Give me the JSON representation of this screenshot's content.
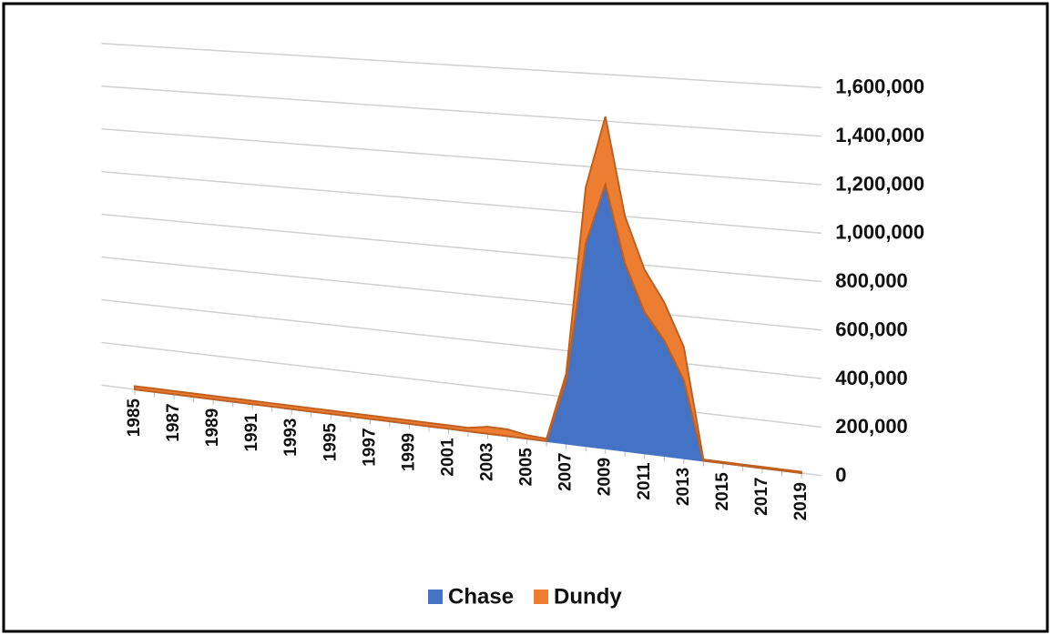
{
  "chart_data": {
    "type": "area",
    "stacked": true,
    "categories": [
      "1985",
      null,
      "1987",
      null,
      "1989",
      null,
      "1991",
      null,
      "1993",
      null,
      "1995",
      null,
      "1997",
      null,
      "1999",
      null,
      "2001",
      null,
      "2003",
      null,
      "2005",
      null,
      "2007",
      null,
      "2009",
      null,
      "2011",
      null,
      "2013",
      null,
      "2015",
      null,
      "2017",
      null,
      "2019"
    ],
    "series": [
      {
        "name": "Chase",
        "color": "#4472c4",
        "values": [
          0,
          0,
          0,
          0,
          0,
          0,
          0,
          0,
          0,
          0,
          0,
          0,
          0,
          0,
          0,
          0,
          0,
          0,
          0,
          0,
          0,
          0,
          270000,
          870000,
          1130000,
          800000,
          600000,
          490000,
          330000,
          0,
          0,
          0,
          0,
          0,
          0
        ]
      },
      {
        "name": "Dundy",
        "color": "#ed7d31",
        "values": [
          15000,
          15000,
          15000,
          15000,
          15000,
          15000,
          15000,
          15000,
          15000,
          15000,
          15000,
          15000,
          15000,
          15000,
          15000,
          15000,
          15000,
          15000,
          30000,
          30000,
          15000,
          10000,
          30000,
          240000,
          290000,
          200000,
          180000,
          160000,
          140000,
          5000,
          5000,
          5000,
          5000,
          5000,
          5000
        ]
      }
    ],
    "ylim": [
      0,
      1600000
    ],
    "yticks": [
      0,
      {
        "value": 200000,
        "label": "200,000"
      },
      {
        "value": 400000,
        "label": "400,000"
      },
      {
        "value": 600000,
        "label": "600,000"
      },
      {
        "value": 800000,
        "label": "800,000"
      },
      {
        "value": 1000000,
        "label": "1,000,000"
      },
      {
        "value": 1200000,
        "label": "1,200,000"
      },
      {
        "value": 1400000,
        "label": "1,400,000"
      },
      {
        "value": 1600000,
        "label": "1,600,000"
      }
    ],
    "grid": true,
    "legend": "bottom"
  }
}
